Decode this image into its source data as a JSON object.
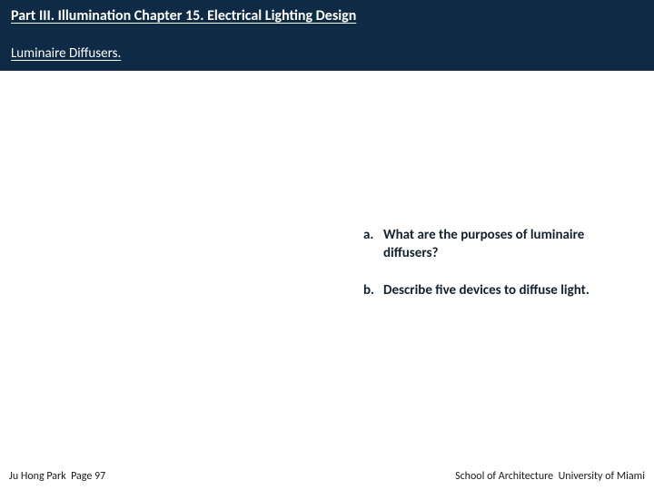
{
  "header": {
    "chapter_title": "Part III. Illumination Chapter 15. Electrical Lighting Design",
    "subtitle": "Luminaire Diffusers."
  },
  "questions": [
    {
      "label": "a.",
      "text": "What are the purposes of luminaire diffusers?"
    },
    {
      "label": "b.",
      "text": "Describe five devices to diffuse light."
    }
  ],
  "footer": {
    "left_author": "Ju Hong Park",
    "left_page": "Page 97",
    "right_school": "School of Architecture",
    "right_univ": "University of Miami"
  },
  "colors": {
    "header_bg": "#0f2a44",
    "header_text": "#ffffff",
    "body_bg": "#ffffff",
    "body_text": "#14222e",
    "footer_text": "#1a1a1a"
  },
  "typography": {
    "title_fontsize": 16,
    "subtitle_fontsize": 15,
    "body_fontsize": 15,
    "footer_fontsize": 12,
    "body_weight": 600
  }
}
